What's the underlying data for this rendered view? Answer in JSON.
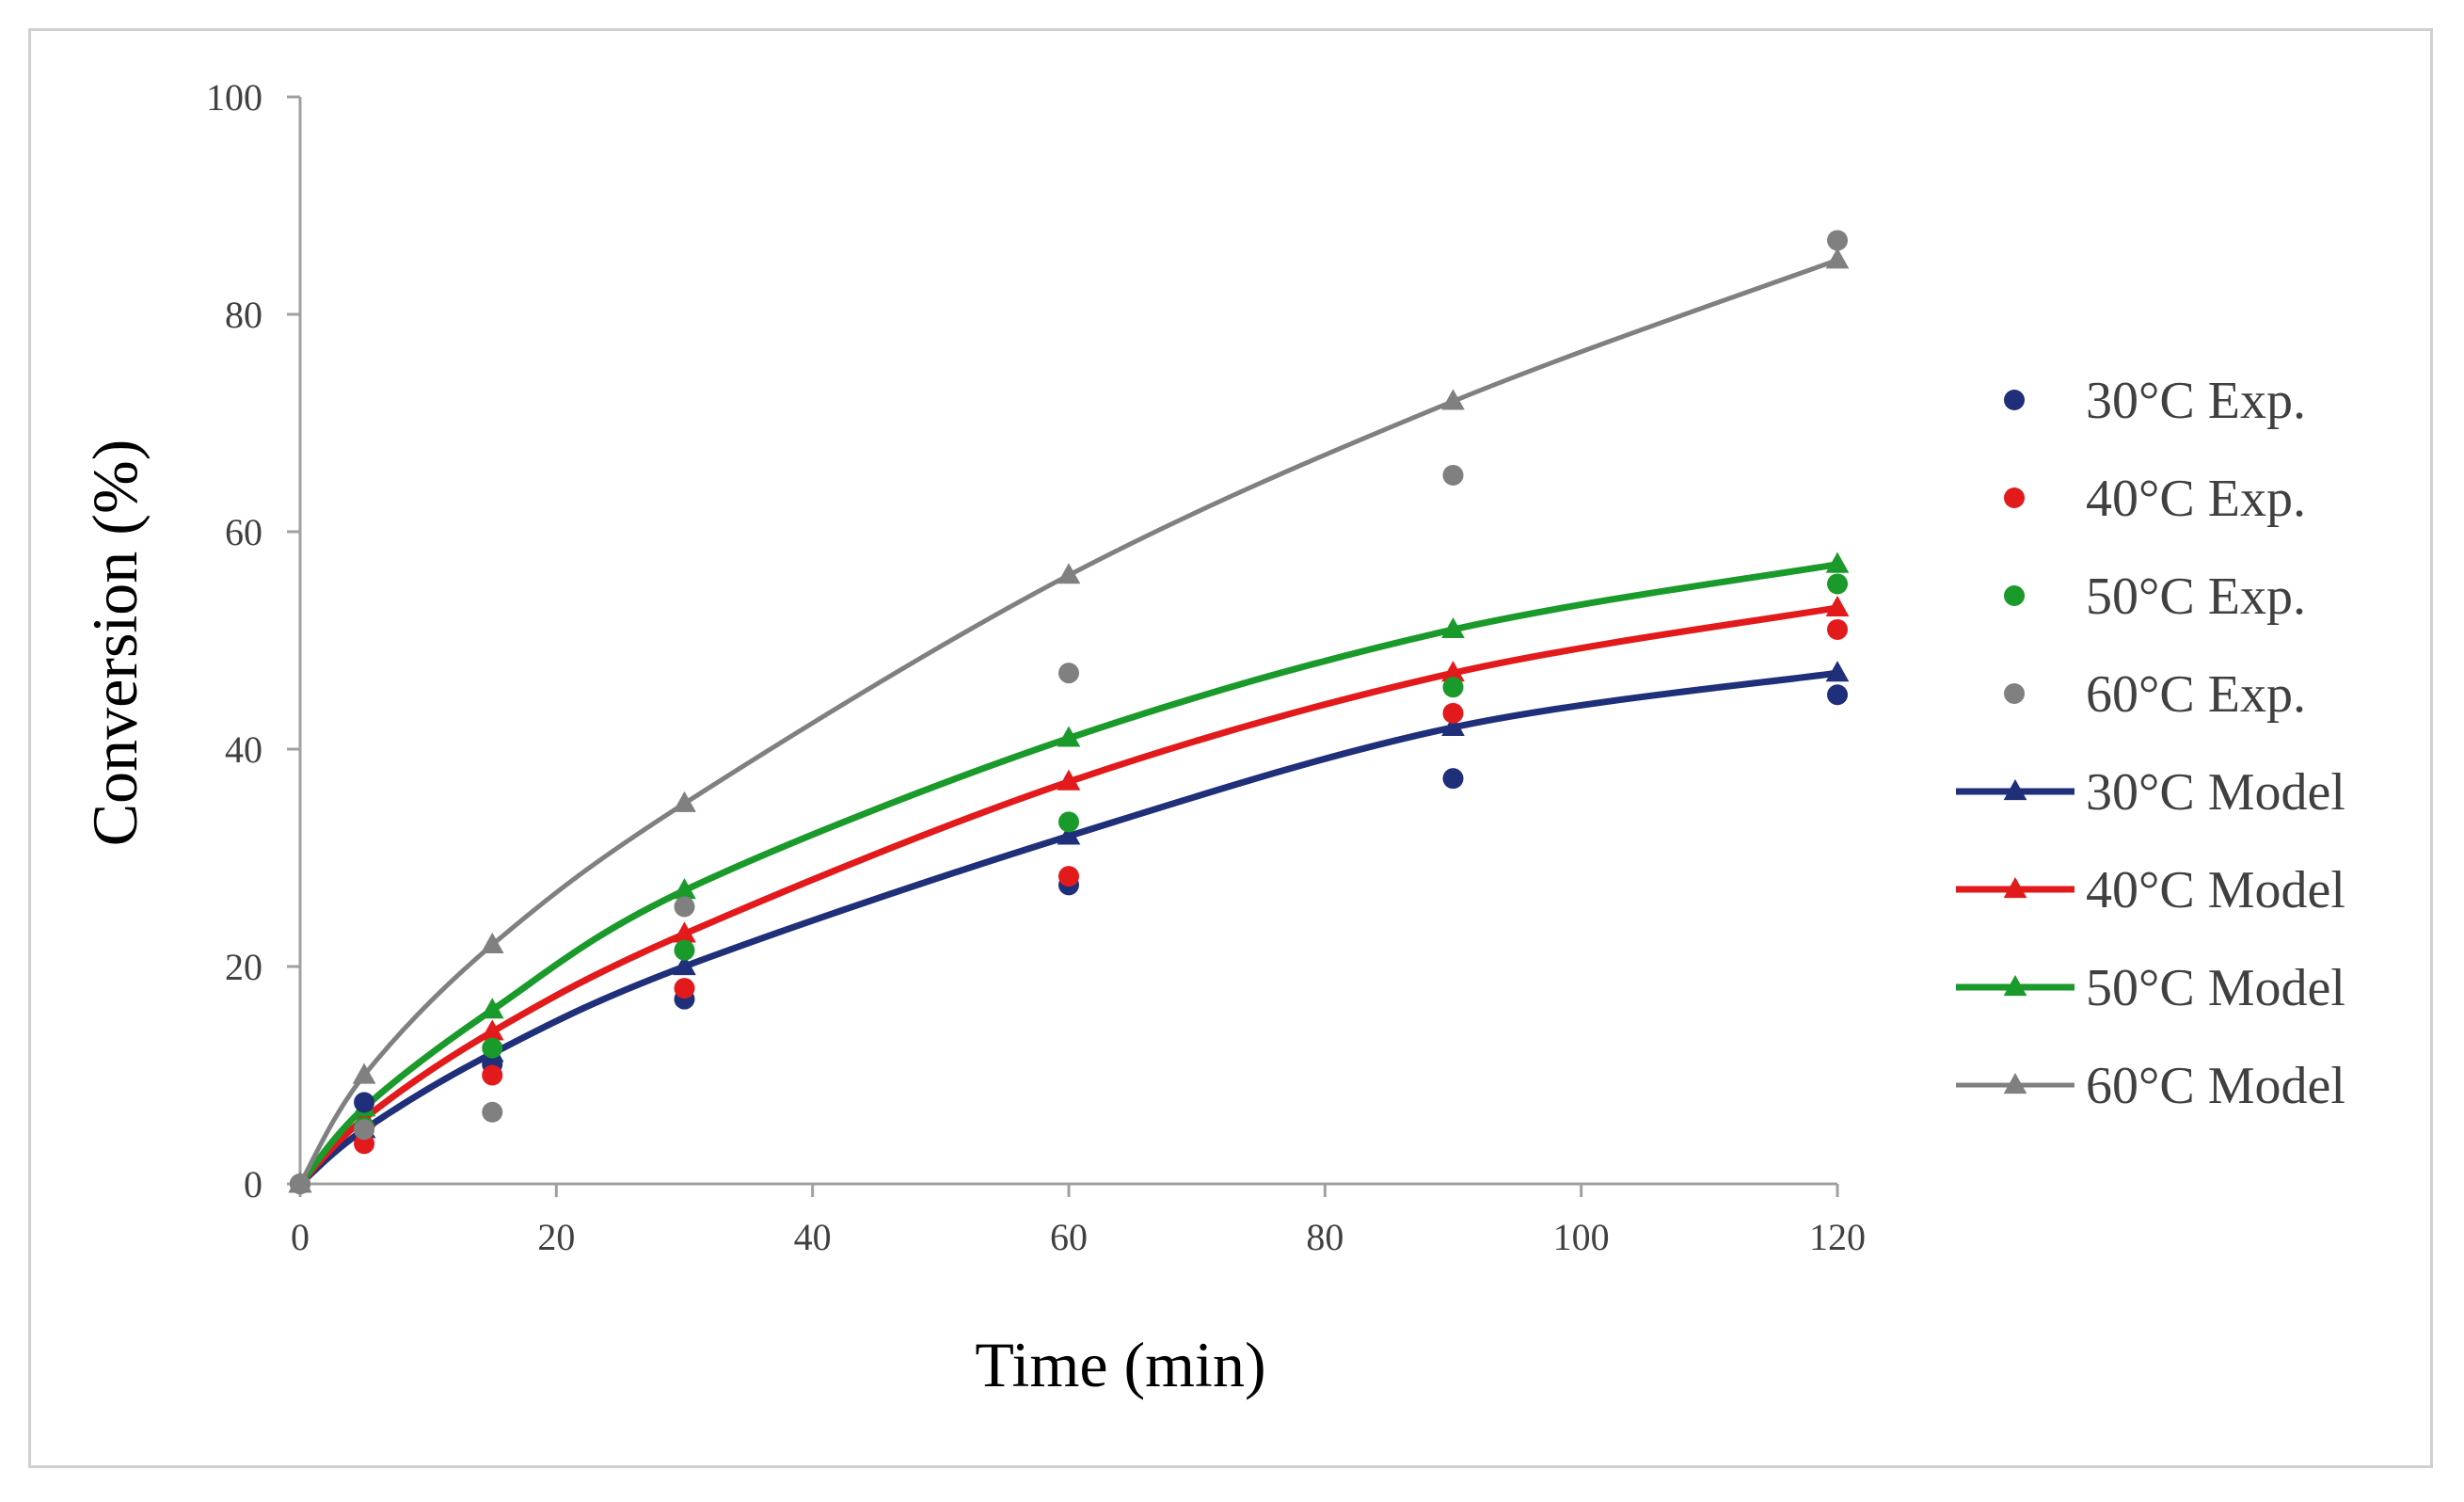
{
  "chart_data": {
    "type": "scatter",
    "title": "",
    "xlabel": "Time (min)",
    "ylabel": "Conversion (%)",
    "xlim": [
      0,
      120
    ],
    "ylim": [
      0,
      100
    ],
    "xticks": [
      0,
      20,
      40,
      60,
      80,
      100,
      120
    ],
    "yticks": [
      0,
      20,
      40,
      60,
      80,
      100
    ],
    "grid": false,
    "legend_position": "right",
    "x": [
      0,
      5,
      15,
      30,
      60,
      90,
      120
    ],
    "experimental_series": [
      {
        "name": "30°C Exp.",
        "color": "#1f2f7a",
        "values": [
          0,
          7.5,
          11,
          17,
          27.5,
          37.3,
          45
        ]
      },
      {
        "name": "40°C Exp.",
        "color": "#e31a1c",
        "values": [
          0,
          3.7,
          10,
          18,
          28.3,
          43.3,
          51
        ]
      },
      {
        "name": "50°C Exp.",
        "color": "#1a9a2a",
        "values": [
          0,
          5.2,
          12.5,
          21.5,
          33.3,
          45.7,
          55.2
        ]
      },
      {
        "name": "60°C Exp.",
        "color": "#808080",
        "values": [
          0,
          5,
          6.6,
          25.5,
          47,
          65.2,
          86.8
        ]
      }
    ],
    "model_series": [
      {
        "name": "30°C Model",
        "color": "#1f2f7a",
        "values": [
          0,
          5,
          12,
          20,
          32,
          42,
          47
        ]
      },
      {
        "name": "40°C Model",
        "color": "#e31a1c",
        "values": [
          0,
          6,
          14,
          23,
          37,
          47,
          53
        ]
      },
      {
        "name": "50°C Model",
        "color": "#1a9a2a",
        "values": [
          0,
          7,
          16,
          27,
          41,
          51,
          57
        ]
      },
      {
        "name": "60°C Model",
        "color": "#808080",
        "values": [
          0,
          10,
          22,
          35,
          56,
          72,
          85
        ]
      }
    ]
  }
}
